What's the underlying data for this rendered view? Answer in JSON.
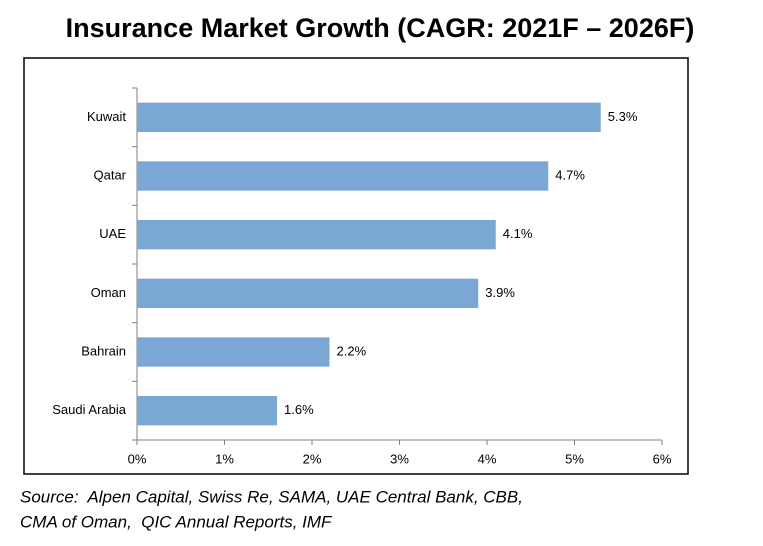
{
  "chart_data": {
    "type": "bar",
    "orientation": "horizontal",
    "title": "Insurance Market Growth (CAGR: 2021F – 2026F)",
    "categories": [
      "Kuwait",
      "Qatar",
      "UAE",
      "Oman",
      "Bahrain",
      "Saudi Arabia"
    ],
    "values": [
      5.3,
      4.7,
      4.1,
      3.9,
      2.2,
      1.6
    ],
    "value_labels": [
      "5.3%",
      "4.7%",
      "4.1%",
      "3.9%",
      "2.2%",
      "1.6%"
    ],
    "color": "#7ba7d4",
    "xlim": [
      0,
      6
    ],
    "xticks": [
      {
        "value": 0,
        "label": "0%"
      },
      {
        "value": 1,
        "label": "1%"
      },
      {
        "value": 2,
        "label": "2%"
      },
      {
        "value": 3,
        "label": "3%"
      },
      {
        "value": 4,
        "label": "4%"
      },
      {
        "value": 5,
        "label": "5%"
      },
      {
        "value": 6,
        "label": "6%"
      }
    ],
    "grid": false,
    "source": [
      "Source:  Alpen Capital, Swiss Re, SAMA, UAE Central Bank, CBB,",
      "CMA of Oman,  QIC Annual Reports, IMF"
    ]
  }
}
